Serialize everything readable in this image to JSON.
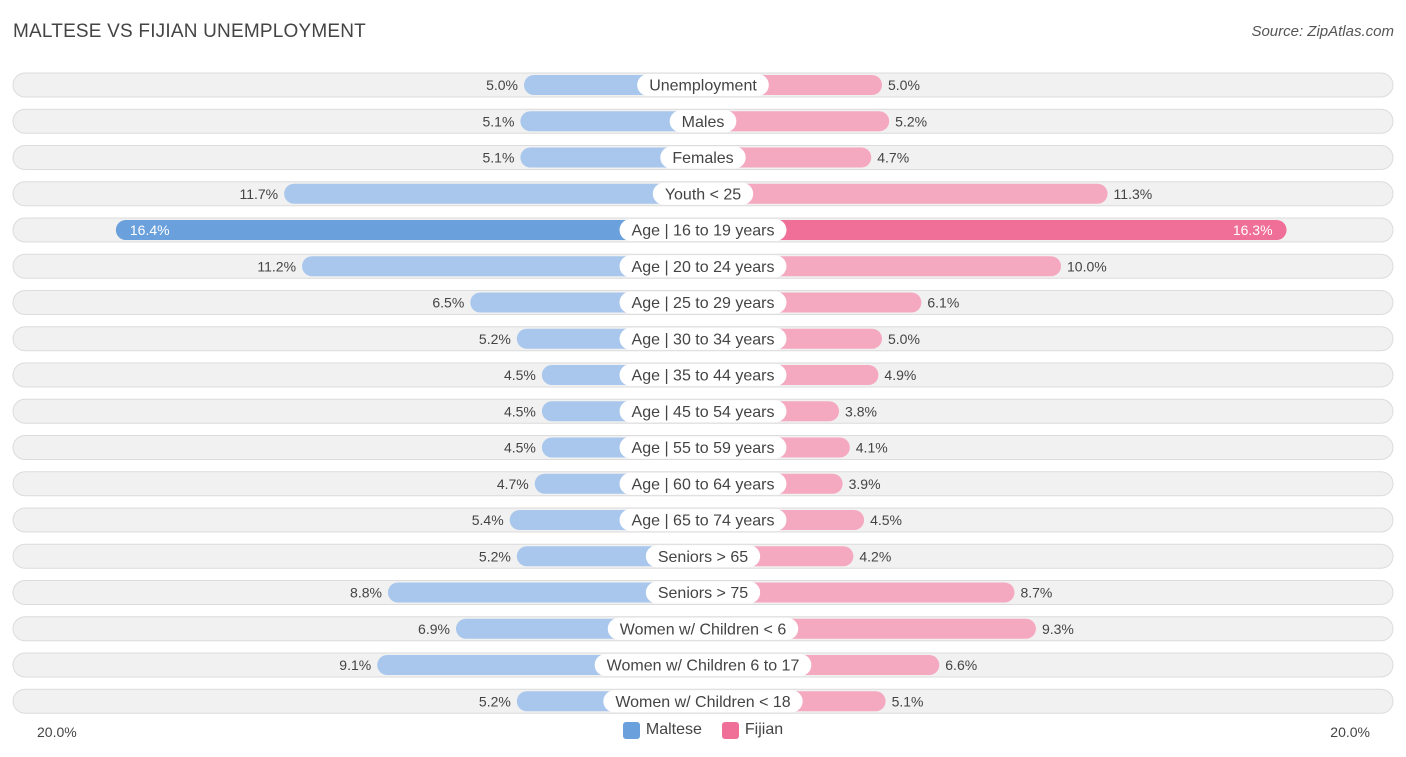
{
  "header": {
    "title": "MALTESE VS FIJIAN UNEMPLOYMENT",
    "source": "Source: ZipAtlas.com"
  },
  "colors": {
    "maltese_light": "#a9c7ec",
    "maltese_strong": "#6aa0dc",
    "fijian_light": "#f5a9c1",
    "fijian_strong": "#f06f98"
  },
  "chart_data": {
    "type": "bar",
    "orientation": "horizontal-diverging",
    "title": "MALTESE VS FIJIAN UNEMPLOYMENT",
    "axis_max": 20.0,
    "axis_left_label": "20.0%",
    "axis_right_label": "20.0%",
    "legend_position": "bottom-center",
    "categories": [
      "Unemployment",
      "Males",
      "Females",
      "Youth < 25",
      "Age | 16 to 19 years",
      "Age | 20 to 24 years",
      "Age | 25 to 29 years",
      "Age | 30 to 34 years",
      "Age | 35 to 44 years",
      "Age | 45 to 54 years",
      "Age | 55 to 59 years",
      "Age | 60 to 64 years",
      "Age | 65 to 74 years",
      "Seniors > 65",
      "Seniors > 75",
      "Women w/ Children < 6",
      "Women w/ Children 6 to 17",
      "Women w/ Children < 18"
    ],
    "series": [
      {
        "name": "Maltese",
        "side": "left",
        "values": [
          5.0,
          5.1,
          5.1,
          11.7,
          16.4,
          11.2,
          6.5,
          5.2,
          4.5,
          4.5,
          4.5,
          4.7,
          5.4,
          5.2,
          8.8,
          6.9,
          9.1,
          5.2
        ],
        "labels": [
          "5.0%",
          "5.1%",
          "5.1%",
          "11.7%",
          "16.4%",
          "11.2%",
          "6.5%",
          "5.2%",
          "4.5%",
          "4.5%",
          "4.5%",
          "4.7%",
          "5.4%",
          "5.2%",
          "8.8%",
          "6.9%",
          "9.1%",
          "5.2%"
        ]
      },
      {
        "name": "Fijian",
        "side": "right",
        "values": [
          5.0,
          5.2,
          4.7,
          11.3,
          16.3,
          10.0,
          6.1,
          5.0,
          4.9,
          3.8,
          4.1,
          3.9,
          4.5,
          4.2,
          8.7,
          9.3,
          6.6,
          5.1
        ],
        "labels": [
          "5.0%",
          "5.2%",
          "4.7%",
          "11.3%",
          "16.3%",
          "10.0%",
          "6.1%",
          "5.0%",
          "4.9%",
          "3.8%",
          "4.1%",
          "3.9%",
          "4.5%",
          "4.2%",
          "8.7%",
          "9.3%",
          "6.6%",
          "5.1%"
        ]
      }
    ]
  },
  "legend": {
    "maltese": "Maltese",
    "fijian": "Fijian"
  }
}
